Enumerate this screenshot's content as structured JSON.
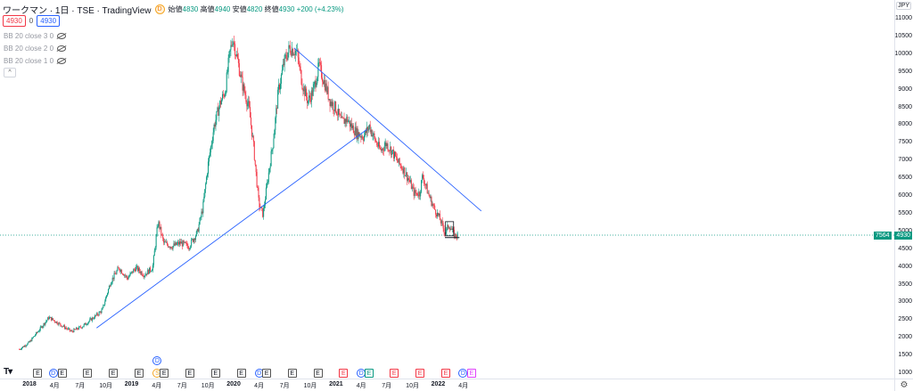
{
  "header": {
    "title": "ワークマン · 1日 · TSE · TradingView",
    "interval_badge": "D",
    "open_label": "始値",
    "open": "4830",
    "high_label": "高値",
    "high": "4940",
    "low_label": "安値",
    "low": "4820",
    "close_label": "終値",
    "close": "4930",
    "change": "+200 (+4.23%)"
  },
  "tags": {
    "sell": "4930",
    "spread": "0",
    "buy": "4930"
  },
  "indicators": [
    {
      "label": "BB 20 close 3 0"
    },
    {
      "label": "BB 20 close 2 0"
    },
    {
      "label": "BB 20 close 1 0"
    }
  ],
  "collapse_icon": "chevron-up-icon",
  "price_axis": {
    "currency": "JPY",
    "ticks": [
      "11000",
      "10500",
      "10000",
      "9500",
      "9000",
      "8500",
      "8000",
      "7500",
      "7000",
      "6500",
      "6000",
      "5500",
      "5000",
      "4500",
      "4000",
      "3500",
      "3000",
      "2500",
      "2000",
      "1500",
      "1000"
    ],
    "last_price_label": "4930",
    "secondary_label": "7564"
  },
  "time_axis": {
    "ticks": [
      {
        "label": "2018",
        "bold": true,
        "d": 0
      },
      {
        "label": "4月",
        "bold": false,
        "d": 90
      },
      {
        "label": "7月",
        "bold": false,
        "d": 181
      },
      {
        "label": "10月",
        "bold": false,
        "d": 273
      },
      {
        "label": "2019",
        "bold": true,
        "d": 365
      },
      {
        "label": "4月",
        "bold": false,
        "d": 455
      },
      {
        "label": "7月",
        "bold": false,
        "d": 546
      },
      {
        "label": "10月",
        "bold": false,
        "d": 638
      },
      {
        "label": "2020",
        "bold": true,
        "d": 730
      },
      {
        "label": "4月",
        "bold": false,
        "d": 821
      },
      {
        "label": "7月",
        "bold": false,
        "d": 912
      },
      {
        "label": "10月",
        "bold": false,
        "d": 1004
      },
      {
        "label": "2021",
        "bold": true,
        "d": 1096
      },
      {
        "label": "4月",
        "bold": false,
        "d": 1186
      },
      {
        "label": "7月",
        "bold": false,
        "d": 1277
      },
      {
        "label": "10月",
        "bold": false,
        "d": 1369
      },
      {
        "label": "2022",
        "bold": true,
        "d": 1461
      },
      {
        "label": "4月",
        "bold": false,
        "d": 1551
      }
    ]
  },
  "events": [
    {
      "type": "E",
      "label": "E",
      "d": 30
    },
    {
      "type": "D",
      "label": "D",
      "d": 85
    },
    {
      "type": "E",
      "label": "E",
      "d": 117
    },
    {
      "type": "E",
      "label": "E",
      "d": 208
    },
    {
      "type": "E",
      "label": "E",
      "d": 300
    },
    {
      "type": "E",
      "label": "E",
      "d": 392
    },
    {
      "type": "D",
      "label": "D",
      "d": 457,
      "row": 1
    },
    {
      "type": "S",
      "label": "S",
      "d": 457
    },
    {
      "type": "E",
      "label": "E",
      "d": 482
    },
    {
      "type": "E",
      "label": "E",
      "d": 573
    },
    {
      "type": "E",
      "label": "E",
      "d": 665
    },
    {
      "type": "E",
      "label": "E",
      "d": 757
    },
    {
      "type": "D",
      "label": "D",
      "d": 821
    },
    {
      "type": "E",
      "label": "E",
      "d": 848
    },
    {
      "type": "E",
      "label": "E",
      "d": 939
    },
    {
      "type": "E",
      "label": "E",
      "d": 1031
    },
    {
      "type": "Er",
      "label": "E",
      "d": 1123
    },
    {
      "type": "D",
      "label": "D",
      "d": 1186
    },
    {
      "type": "Eg",
      "label": "E",
      "d": 1214
    },
    {
      "type": "Er",
      "label": "E",
      "d": 1304
    },
    {
      "type": "Er",
      "label": "E",
      "d": 1396
    },
    {
      "type": "Er",
      "label": "E",
      "d": 1488
    },
    {
      "type": "D",
      "label": "D",
      "d": 1550
    },
    {
      "type": "Ep",
      "label": "E",
      "d": 1580
    }
  ],
  "chart_data": {
    "type": "candlestick-line",
    "y_min": 1000,
    "y_max": 11000,
    "x_start": "2018-01-01",
    "up_color": "#089981",
    "down_color": "#f23645",
    "trendline_color": "#2962ff",
    "price_line_color": "#089981",
    "path": [
      [
        -36,
        1700
      ],
      [
        0,
        1900
      ],
      [
        40,
        2300
      ],
      [
        70,
        2600
      ],
      [
        110,
        2400
      ],
      [
        150,
        2200
      ],
      [
        190,
        2350
      ],
      [
        230,
        2600
      ],
      [
        260,
        2800
      ],
      [
        290,
        3600
      ],
      [
        320,
        4000
      ],
      [
        350,
        3700
      ],
      [
        380,
        4000
      ],
      [
        410,
        3800
      ],
      [
        440,
        4000
      ],
      [
        460,
        5300
      ],
      [
        480,
        4700
      ],
      [
        510,
        4600
      ],
      [
        540,
        4700
      ],
      [
        570,
        4600
      ],
      [
        600,
        5000
      ],
      [
        620,
        5700
      ],
      [
        640,
        7000
      ],
      [
        660,
        8000
      ],
      [
        680,
        8600
      ],
      [
        700,
        9000
      ],
      [
        715,
        10000
      ],
      [
        727,
        10500
      ],
      [
        740,
        10000
      ],
      [
        760,
        9200
      ],
      [
        785,
        8500
      ],
      [
        800,
        7500
      ],
      [
        820,
        5800
      ],
      [
        835,
        5500
      ],
      [
        850,
        6400
      ],
      [
        870,
        7500
      ],
      [
        890,
        9000
      ],
      [
        910,
        9800
      ],
      [
        930,
        10200
      ],
      [
        955,
        10100
      ],
      [
        975,
        9200
      ],
      [
        995,
        8700
      ],
      [
        1015,
        9000
      ],
      [
        1035,
        9700
      ],
      [
        1055,
        9200
      ],
      [
        1075,
        8700
      ],
      [
        1095,
        8500
      ],
      [
        1115,
        8100
      ],
      [
        1135,
        8200
      ],
      [
        1150,
        8000
      ],
      [
        1170,
        7800
      ],
      [
        1195,
        7700
      ],
      [
        1215,
        8000
      ],
      [
        1235,
        7600
      ],
      [
        1255,
        7300
      ],
      [
        1275,
        7500
      ],
      [
        1295,
        7300
      ],
      [
        1315,
        7000
      ],
      [
        1335,
        6800
      ],
      [
        1355,
        6500
      ],
      [
        1375,
        6100
      ],
      [
        1395,
        6100
      ],
      [
        1405,
        6600
      ],
      [
        1425,
        6100
      ],
      [
        1445,
        5700
      ],
      [
        1465,
        5400
      ],
      [
        1485,
        5000
      ],
      [
        1500,
        5200
      ],
      [
        1520,
        4900
      ],
      [
        1531,
        4930
      ]
    ],
    "trendlines": [
      {
        "from": [
          240,
          2300
        ],
        "to": [
          1206,
          7900
        ]
      },
      {
        "from": [
          946,
          10200
        ],
        "to": [
          1615,
          5600
        ]
      }
    ],
    "range_box": {
      "from": [
        1487,
        5300
      ],
      "to": [
        1516,
        4900
      ]
    },
    "support_line": {
      "from": [
        1485,
        4850
      ],
      "to": [
        1537,
        4850
      ]
    },
    "last_price": 4930
  }
}
